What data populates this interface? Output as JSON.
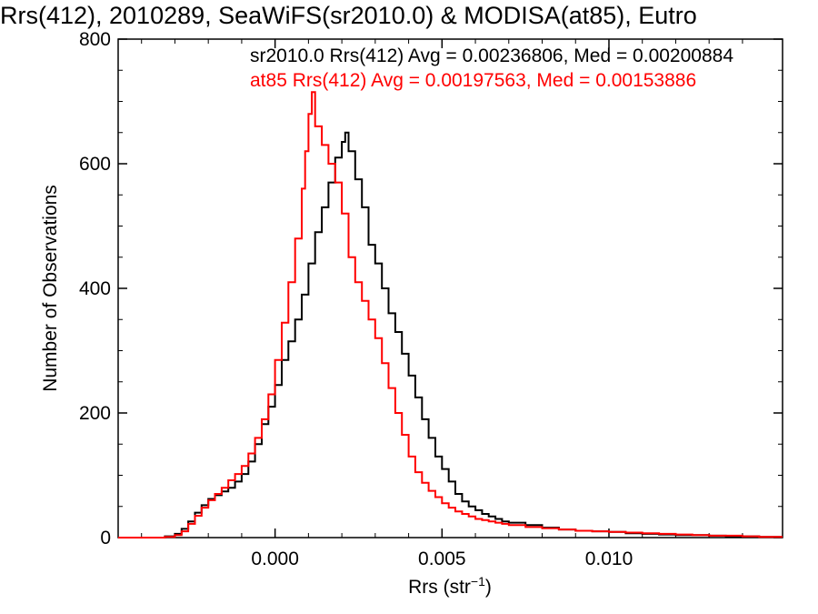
{
  "chart_data": {
    "type": "line",
    "title": "Rrs(412), 2010289, SeaWiFS(sr2010.0) & MODISA(at85), Eutro",
    "xlabel": "Rrs (str",
    "xlabel_sup": "−1",
    "xlabel_close": ")",
    "ylabel": "Number of Observations",
    "xlim": [
      -0.0047,
      0.0152
    ],
    "ylim": [
      0,
      800
    ],
    "xticks": [
      0.0,
      0.005,
      0.01
    ],
    "xtick_labels": [
      "0.000",
      "0.005",
      "0.010"
    ],
    "yticks": [
      0,
      200,
      400,
      600,
      800
    ],
    "ytick_labels": [
      "0",
      "200",
      "400",
      "600",
      "800"
    ],
    "grid": false,
    "legend_placement": "top-right",
    "series": [
      {
        "name": "sr2010.0 Rrs(412) Avg = 0.00236806, Med = 0.00200884",
        "color": "#000000",
        "points": [
          [
            -0.0047,
            0
          ],
          [
            -0.004,
            0
          ],
          [
            -0.0033,
            2
          ],
          [
            -0.003,
            6
          ],
          [
            -0.0028,
            14
          ],
          [
            -0.0026,
            26
          ],
          [
            -0.0024,
            40
          ],
          [
            -0.0022,
            52
          ],
          [
            -0.002,
            62
          ],
          [
            -0.0018,
            68
          ],
          [
            -0.0016,
            74
          ],
          [
            -0.0014,
            80
          ],
          [
            -0.0012,
            90
          ],
          [
            -0.001,
            102
          ],
          [
            -0.0008,
            122
          ],
          [
            -0.0006,
            150
          ],
          [
            -0.0004,
            182
          ],
          [
            -0.0002,
            210
          ],
          [
            0.0,
            245
          ],
          [
            0.0002,
            285
          ],
          [
            0.0004,
            315
          ],
          [
            0.0006,
            350
          ],
          [
            0.0008,
            390
          ],
          [
            0.001,
            440
          ],
          [
            0.0012,
            490
          ],
          [
            0.0014,
            530
          ],
          [
            0.0016,
            570
          ],
          [
            0.0018,
            610
          ],
          [
            0.002,
            635
          ],
          [
            0.0021,
            650
          ],
          [
            0.0022,
            620
          ],
          [
            0.0024,
            575
          ],
          [
            0.0026,
            530
          ],
          [
            0.0028,
            470
          ],
          [
            0.003,
            440
          ],
          [
            0.0032,
            400
          ],
          [
            0.0034,
            360
          ],
          [
            0.0036,
            330
          ],
          [
            0.0038,
            295
          ],
          [
            0.004,
            260
          ],
          [
            0.0042,
            225
          ],
          [
            0.0044,
            190
          ],
          [
            0.0046,
            160
          ],
          [
            0.0048,
            130
          ],
          [
            0.005,
            110
          ],
          [
            0.0052,
            90
          ],
          [
            0.0054,
            70
          ],
          [
            0.0056,
            58
          ],
          [
            0.0058,
            50
          ],
          [
            0.006,
            44
          ],
          [
            0.0062,
            38
          ],
          [
            0.0064,
            34
          ],
          [
            0.0066,
            30
          ],
          [
            0.0068,
            26
          ],
          [
            0.007,
            24
          ],
          [
            0.0075,
            20
          ],
          [
            0.008,
            16
          ],
          [
            0.0085,
            13
          ],
          [
            0.009,
            11
          ],
          [
            0.0095,
            10
          ],
          [
            0.01,
            9
          ],
          [
            0.0105,
            7
          ],
          [
            0.011,
            6
          ],
          [
            0.0115,
            5
          ],
          [
            0.012,
            4
          ],
          [
            0.0125,
            4
          ],
          [
            0.013,
            3
          ],
          [
            0.0135,
            2
          ],
          [
            0.014,
            2
          ],
          [
            0.0145,
            1
          ],
          [
            0.0152,
            1
          ]
        ]
      },
      {
        "name": "at85 Rrs(412) Avg = 0.00197563, Med = 0.00153886",
        "color": "#ff0000",
        "points": [
          [
            -0.0047,
            0
          ],
          [
            -0.004,
            0
          ],
          [
            -0.0033,
            1
          ],
          [
            -0.003,
            4
          ],
          [
            -0.0028,
            10
          ],
          [
            -0.0026,
            22
          ],
          [
            -0.0024,
            35
          ],
          [
            -0.0022,
            48
          ],
          [
            -0.002,
            60
          ],
          [
            -0.0018,
            70
          ],
          [
            -0.0016,
            80
          ],
          [
            -0.0014,
            92
          ],
          [
            -0.0012,
            102
          ],
          [
            -0.001,
            115
          ],
          [
            -0.0008,
            135
          ],
          [
            -0.0006,
            160
          ],
          [
            -0.0004,
            190
          ],
          [
            -0.0002,
            230
          ],
          [
            0.0,
            285
          ],
          [
            0.0002,
            345
          ],
          [
            0.0004,
            410
          ],
          [
            0.0006,
            480
          ],
          [
            0.0008,
            560
          ],
          [
            0.0009,
            620
          ],
          [
            0.001,
            680
          ],
          [
            0.0011,
            715
          ],
          [
            0.0012,
            660
          ],
          [
            0.0014,
            630
          ],
          [
            0.0016,
            600
          ],
          [
            0.0018,
            570
          ],
          [
            0.002,
            520
          ],
          [
            0.0022,
            450
          ],
          [
            0.0024,
            410
          ],
          [
            0.0026,
            380
          ],
          [
            0.0028,
            350
          ],
          [
            0.003,
            320
          ],
          [
            0.0032,
            280
          ],
          [
            0.0034,
            240
          ],
          [
            0.0036,
            200
          ],
          [
            0.0038,
            165
          ],
          [
            0.004,
            130
          ],
          [
            0.0042,
            105
          ],
          [
            0.0044,
            88
          ],
          [
            0.0046,
            75
          ],
          [
            0.0048,
            65
          ],
          [
            0.005,
            55
          ],
          [
            0.0052,
            48
          ],
          [
            0.0054,
            42
          ],
          [
            0.0056,
            38
          ],
          [
            0.0058,
            34
          ],
          [
            0.006,
            30
          ],
          [
            0.0062,
            28
          ],
          [
            0.0064,
            26
          ],
          [
            0.0066,
            24
          ],
          [
            0.0068,
            22
          ],
          [
            0.007,
            20
          ],
          [
            0.0075,
            17
          ],
          [
            0.008,
            15
          ],
          [
            0.0085,
            13
          ],
          [
            0.009,
            11
          ],
          [
            0.0095,
            10
          ],
          [
            0.01,
            9
          ],
          [
            0.0105,
            8
          ],
          [
            0.011,
            7
          ],
          [
            0.0115,
            6
          ],
          [
            0.012,
            5
          ],
          [
            0.0125,
            4
          ],
          [
            0.013,
            3
          ],
          [
            0.0135,
            3
          ],
          [
            0.014,
            2
          ],
          [
            0.0145,
            1
          ],
          [
            0.0152,
            1
          ]
        ]
      }
    ]
  }
}
